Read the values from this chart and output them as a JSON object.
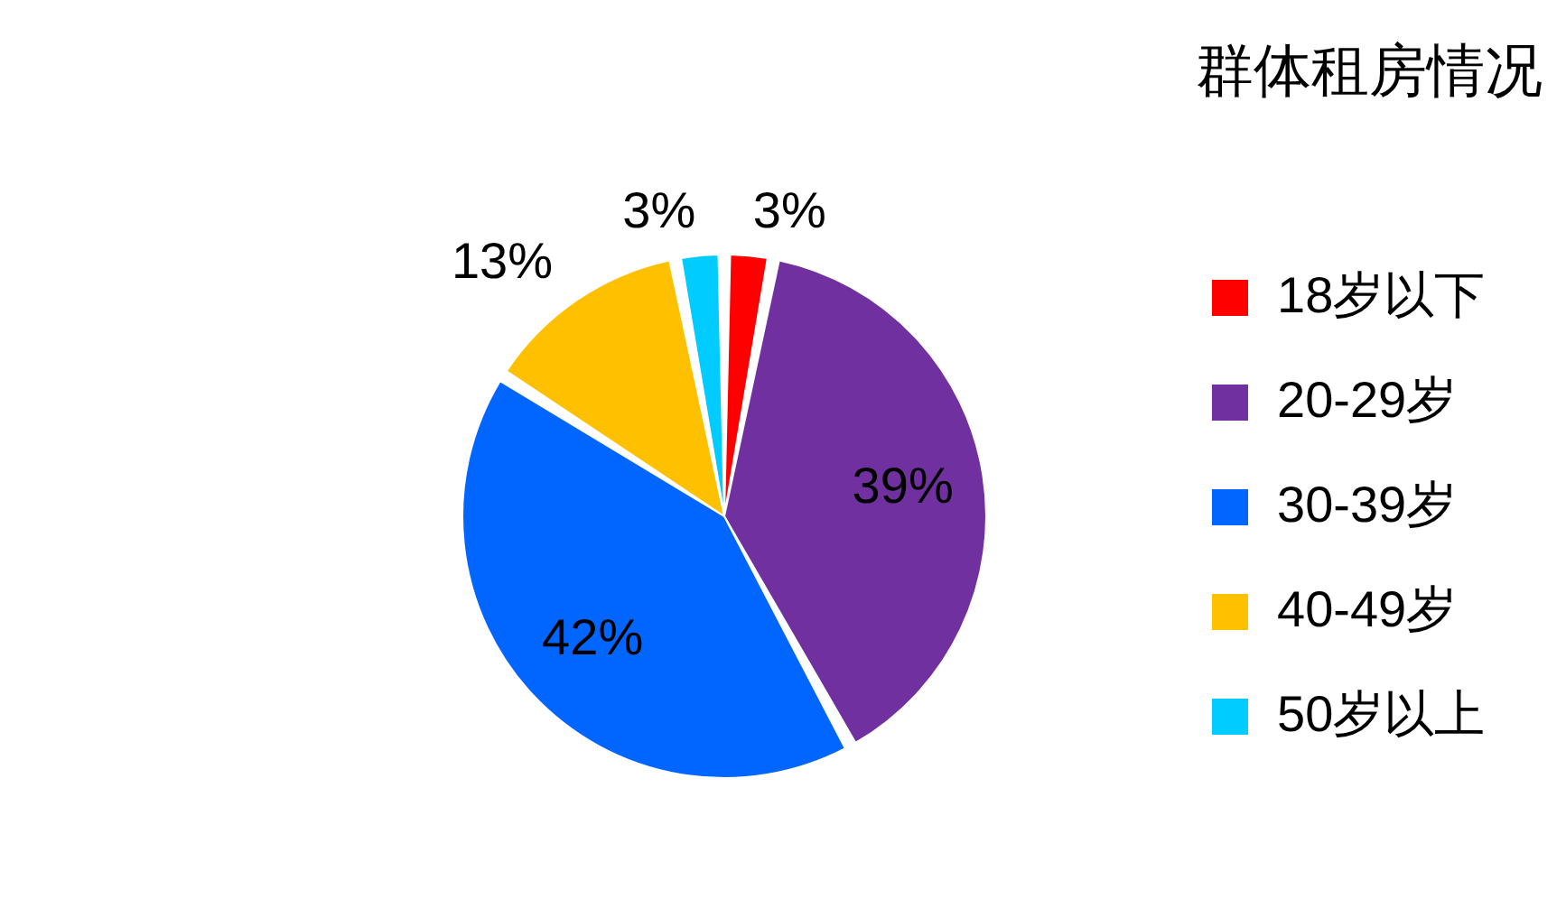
{
  "chart_data": {
    "type": "pie",
    "title": "群体租房情况",
    "categories": [
      "18岁以下",
      "20-29岁",
      "30-39岁",
      "40-49岁",
      "50岁以上"
    ],
    "values": [
      3,
      39,
      42,
      13,
      3
    ],
    "value_labels": [
      "3%",
      "39%",
      "42%",
      "13%",
      "3%"
    ],
    "colors": [
      "#ff0000",
      "#7030a0",
      "#0066ff",
      "#ffc000",
      "#00ccff"
    ],
    "legend": "right"
  }
}
